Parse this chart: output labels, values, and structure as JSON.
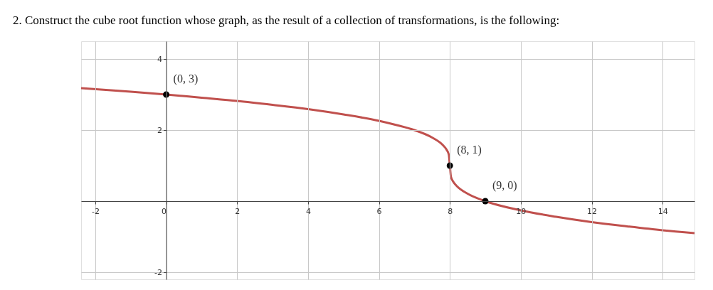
{
  "chart_data": {
    "type": "line",
    "title": "2.  Construct the cube root function whose graph, as the result of a collection of transformations, is the following:",
    "xlim": [
      -2.4,
      14.9
    ],
    "ylim": [
      -2.2,
      4.5
    ],
    "xticks": [
      -2,
      0,
      2,
      4,
      6,
      8,
      10,
      12,
      14
    ],
    "yticks": [
      -2,
      {
        "value": 0,
        "label": null
      },
      2,
      4
    ],
    "grid": true,
    "series": [
      {
        "color": "#c0504d",
        "x": [
          -2.4,
          -1,
          0,
          1,
          2,
          3,
          4,
          5,
          6,
          6.5,
          7,
          7.5,
          7.8,
          7.9,
          7.97,
          8,
          8.03,
          8.1,
          8.2,
          8.5,
          9,
          10,
          11,
          12,
          13,
          14,
          14.9
        ],
        "values": [
          3.18,
          3.08,
          3,
          2.91,
          2.82,
          2.71,
          2.59,
          2.44,
          2.26,
          2.14,
          2,
          1.79,
          1.58,
          1.46,
          1.31,
          1,
          0.69,
          0.54,
          0.42,
          0.21,
          0,
          -0.26,
          -0.44,
          -0.59,
          -0.71,
          -0.82,
          -0.9
        ]
      },
      {
        "type": "scatter",
        "color": "#000000",
        "marker": "circle",
        "x": [
          0,
          8,
          9
        ],
        "values": [
          3,
          1,
          0
        ]
      }
    ],
    "annotations": [
      {
        "text": "(0, 3)",
        "x": 0,
        "y": 3
      },
      {
        "text": "(8, 1)",
        "x": 8,
        "y": 1
      },
      {
        "text": "(9, 0)",
        "x": 9,
        "y": 0
      }
    ]
  }
}
